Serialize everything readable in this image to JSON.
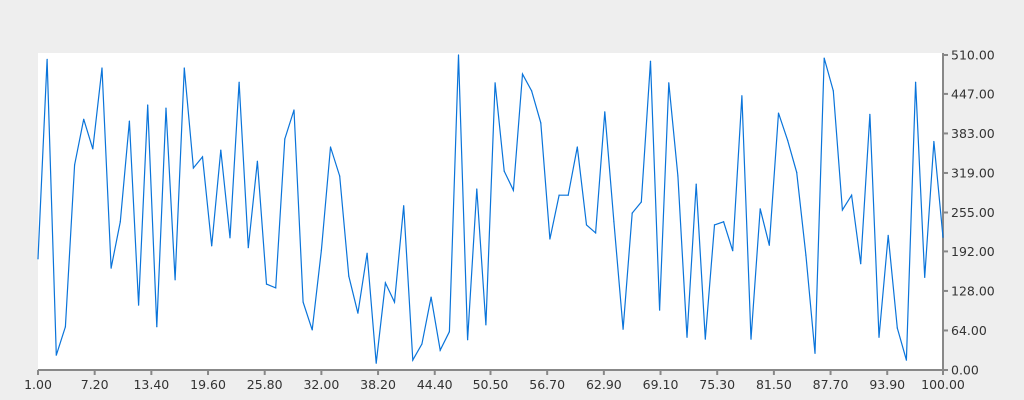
{
  "chart_data": {
    "type": "line",
    "title": "",
    "xlabel": "",
    "ylabel": "",
    "xlim": [
      1,
      100
    ],
    "ylim": [
      0,
      510
    ],
    "grid": false,
    "legend": "none",
    "y_axis_side": "right",
    "line_color": "#0a74da",
    "x_ticks": [
      "1.00",
      "7.20",
      "13.40",
      "19.60",
      "25.80",
      "32.00",
      "38.20",
      "44.40",
      "50.50",
      "56.70",
      "62.90",
      "69.10",
      "75.30",
      "81.50",
      "87.70",
      "93.90",
      "100.00"
    ],
    "y_ticks": [
      "0.00",
      "64.00",
      "128.00",
      "192.00",
      "255.00",
      "319.00",
      "383.00",
      "447.00",
      "510.00"
    ],
    "series": [
      {
        "values": [
          180,
          503,
          24,
          70,
          332,
          406,
          358,
          489,
          165,
          240,
          403,
          105,
          429,
          70,
          424,
          146,
          489,
          327,
          345,
          201,
          356,
          214,
          466,
          198,
          338,
          139,
          133,
          374,
          421,
          110,
          65,
          194,
          361,
          314,
          152,
          92,
          189,
          11,
          141,
          110,
          266,
          16,
          42,
          118,
          32,
          62,
          510,
          49,
          293,
          73,
          465,
          322,
          291,
          479,
          452,
          400,
          212,
          283,
          283,
          361,
          235,
          222,
          418,
          240,
          66,
          254,
          272,
          500,
          97,
          465,
          314,
          53,
          301,
          50,
          235,
          240,
          193,
          444,
          50,
          261,
          202,
          416,
          372,
          320,
          186,
          27,
          505,
          452,
          259,
          283,
          172,
          414,
          53,
          218,
          68,
          16,
          466,
          150,
          370,
          215
        ]
      }
    ]
  }
}
